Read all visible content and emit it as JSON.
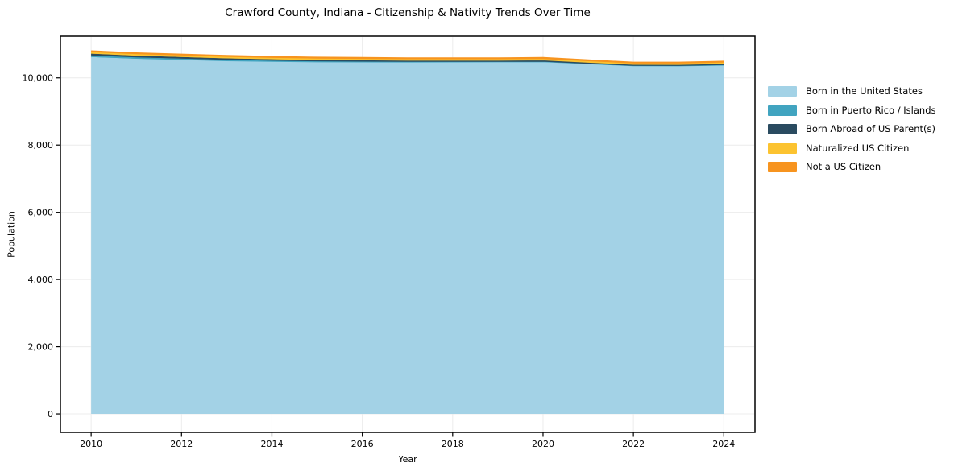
{
  "title": "Crawford County, Indiana - Citizenship & Nativity Trends Over Time",
  "chart_data": {
    "type": "area",
    "stacked": true,
    "title": "Crawford County, Indiana - Citizenship & Nativity Trends Over Time",
    "xlabel": "Year",
    "ylabel": "Population",
    "grid": true,
    "legend_position": "right-outside",
    "x": [
      2010,
      2011,
      2012,
      2013,
      2014,
      2015,
      2016,
      2017,
      2018,
      2019,
      2020,
      2021,
      2022,
      2023,
      2024
    ],
    "series": [
      {
        "name": "Born in the United States",
        "color": "#a3d2e6",
        "values": [
          10600,
          10550,
          10520,
          10490,
          10475,
          10465,
          10467,
          10468,
          10472,
          10475,
          10477,
          10418,
          10362,
          10356,
          10376
        ]
      },
      {
        "name": "Born in Puerto Rico / Islands",
        "color": "#41a4c0",
        "values": [
          45,
          40,
          35,
          30,
          25,
          20,
          15,
          12,
          10,
          10,
          12,
          10,
          8,
          10,
          12
        ]
      },
      {
        "name": "Born Abroad of US Parent(s)",
        "color": "#2a4b60",
        "values": [
          55,
          50,
          45,
          40,
          35,
          30,
          25,
          20,
          18,
          15,
          15,
          12,
          10,
          12,
          15
        ]
      },
      {
        "name": "Naturalized US Citizen",
        "color": "#fcc330",
        "values": [
          45,
          45,
          45,
          45,
          40,
          40,
          38,
          35,
          35,
          35,
          38,
          35,
          30,
          30,
          32
        ]
      },
      {
        "name": "Not a US Citizen",
        "color": "#f7941f",
        "values": [
          55,
          55,
          55,
          55,
          55,
          55,
          55,
          55,
          55,
          55,
          58,
          55,
          50,
          52,
          55
        ]
      }
    ],
    "x_ticks": {
      "values": [
        2010,
        2012,
        2014,
        2016,
        2018,
        2020,
        2022,
        2024
      ],
      "labels": [
        "2010",
        "2012",
        "2014",
        "2016",
        "2018",
        "2020",
        "2022",
        "2024"
      ]
    },
    "y_ticks": {
      "values": [
        0,
        2000,
        4000,
        6000,
        8000,
        10000
      ],
      "labels": [
        "0",
        "2,000",
        "4,000",
        "6,000",
        "8,000",
        "10,000"
      ]
    },
    "xlim": [
      2009.32,
      2024.69
    ],
    "ylim": [
      -550,
      11240
    ],
    "grid_color": "#ececec",
    "spine_color": "#000000",
    "background_color": "#ffffff"
  }
}
